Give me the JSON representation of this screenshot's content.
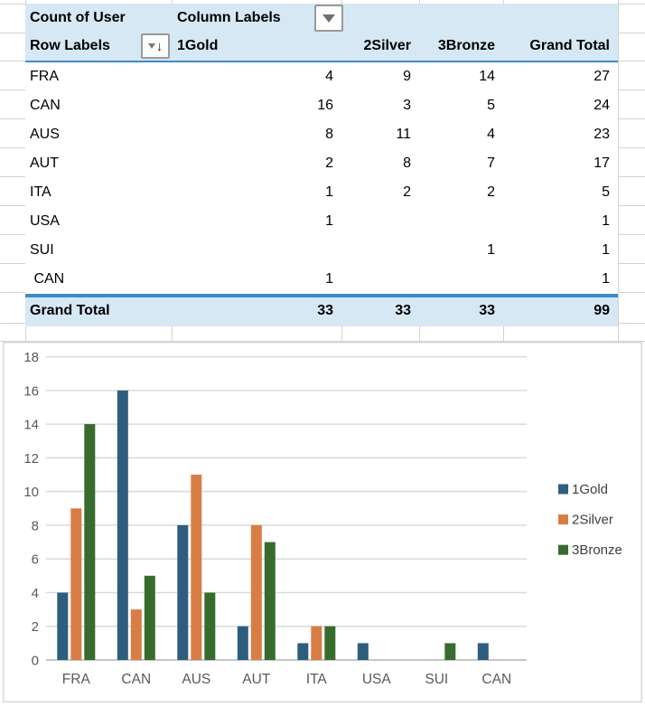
{
  "table": {
    "corner_label": "Count of User",
    "column_labels_header": "Column Labels",
    "row_labels_header": "Row Labels",
    "columns": [
      "1Gold",
      "2Silver",
      "3Bronze",
      "Grand Total"
    ],
    "rows": [
      {
        "label": "FRA",
        "values": [
          "4",
          "9",
          "14",
          "27"
        ]
      },
      {
        "label": "CAN",
        "values": [
          "16",
          "3",
          "5",
          "24"
        ]
      },
      {
        "label": "AUS",
        "values": [
          "8",
          "11",
          "4",
          "23"
        ]
      },
      {
        "label": "AUT",
        "values": [
          "2",
          "8",
          "7",
          "17"
        ]
      },
      {
        "label": "ITA",
        "values": [
          "1",
          "2",
          "2",
          "5"
        ]
      },
      {
        "label": "USA",
        "values": [
          "1",
          "",
          "",
          "1"
        ]
      },
      {
        "label": "SUI",
        "values": [
          "",
          "",
          "1",
          "1"
        ]
      },
      {
        "label": " CAN",
        "values": [
          "1",
          "",
          "",
          "1"
        ]
      }
    ],
    "grand_total": {
      "label": "Grand Total",
      "values": [
        "33",
        "33",
        "33",
        "99"
      ]
    }
  },
  "chart_data": {
    "type": "bar",
    "title": "",
    "xlabel": "",
    "ylabel": "",
    "categories": [
      "FRA",
      "CAN",
      "AUS",
      "AUT",
      "ITA",
      "USA",
      "SUI",
      "CAN"
    ],
    "series": [
      {
        "name": "1Gold",
        "color": "#2e5e7e",
        "values": [
          4,
          16,
          8,
          2,
          1,
          1,
          0,
          1
        ]
      },
      {
        "name": "2Silver",
        "color": "#d87d45",
        "values": [
          9,
          3,
          11,
          8,
          2,
          0,
          0,
          0
        ]
      },
      {
        "name": "3Bronze",
        "color": "#386c2e",
        "values": [
          14,
          5,
          4,
          7,
          2,
          0,
          1,
          0
        ]
      }
    ],
    "ylim": [
      0,
      18
    ],
    "ytick_step": 2,
    "grid": true,
    "legend_position": "right"
  },
  "icons": {
    "column_labels_filter": "chevron-down-icon",
    "row_labels_filter": "chevron-down-icon + arrow-down-icon"
  },
  "colors": {
    "pivot_fill": "#d6e8f4",
    "pivot_accent_border": "#3e8bc8",
    "worksheet_gridline": "#d2d2d2",
    "chart_border": "#d9d9d9",
    "chart_gridline": "#d9d9d9",
    "chart_baseline": "#c6c6c6",
    "axis_text": "#595959",
    "legend_text": "#3f3f3f"
  }
}
